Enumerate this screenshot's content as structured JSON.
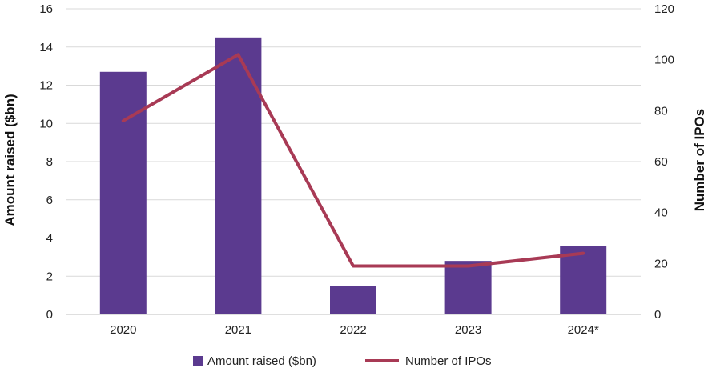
{
  "chart_data": {
    "type": "bar",
    "categories": [
      "2020",
      "2021",
      "2022",
      "2023",
      "2024*"
    ],
    "series": [
      {
        "name": "Amount raised ($bn)",
        "type": "bar",
        "axis": "left",
        "color": "#5b3a8f",
        "values": [
          12.7,
          14.5,
          1.5,
          2.8,
          3.6
        ]
      },
      {
        "name": "Number of IPOs",
        "type": "line",
        "axis": "right",
        "color": "#a83a55",
        "values": [
          76,
          102,
          19,
          19,
          24
        ]
      }
    ],
    "ylabel": "Amount raised ($bn)",
    "y2label": "Number of IPOs",
    "ylim": [
      0,
      16
    ],
    "yticks": [
      "0",
      "2",
      "4",
      "6",
      "8",
      "10",
      "12",
      "14",
      "16"
    ],
    "y2lim": [
      0,
      120
    ],
    "y2ticks": [
      "0",
      "20",
      "40",
      "60",
      "80",
      "100",
      "120"
    ],
    "grid": true,
    "legend_position": "bottom"
  }
}
